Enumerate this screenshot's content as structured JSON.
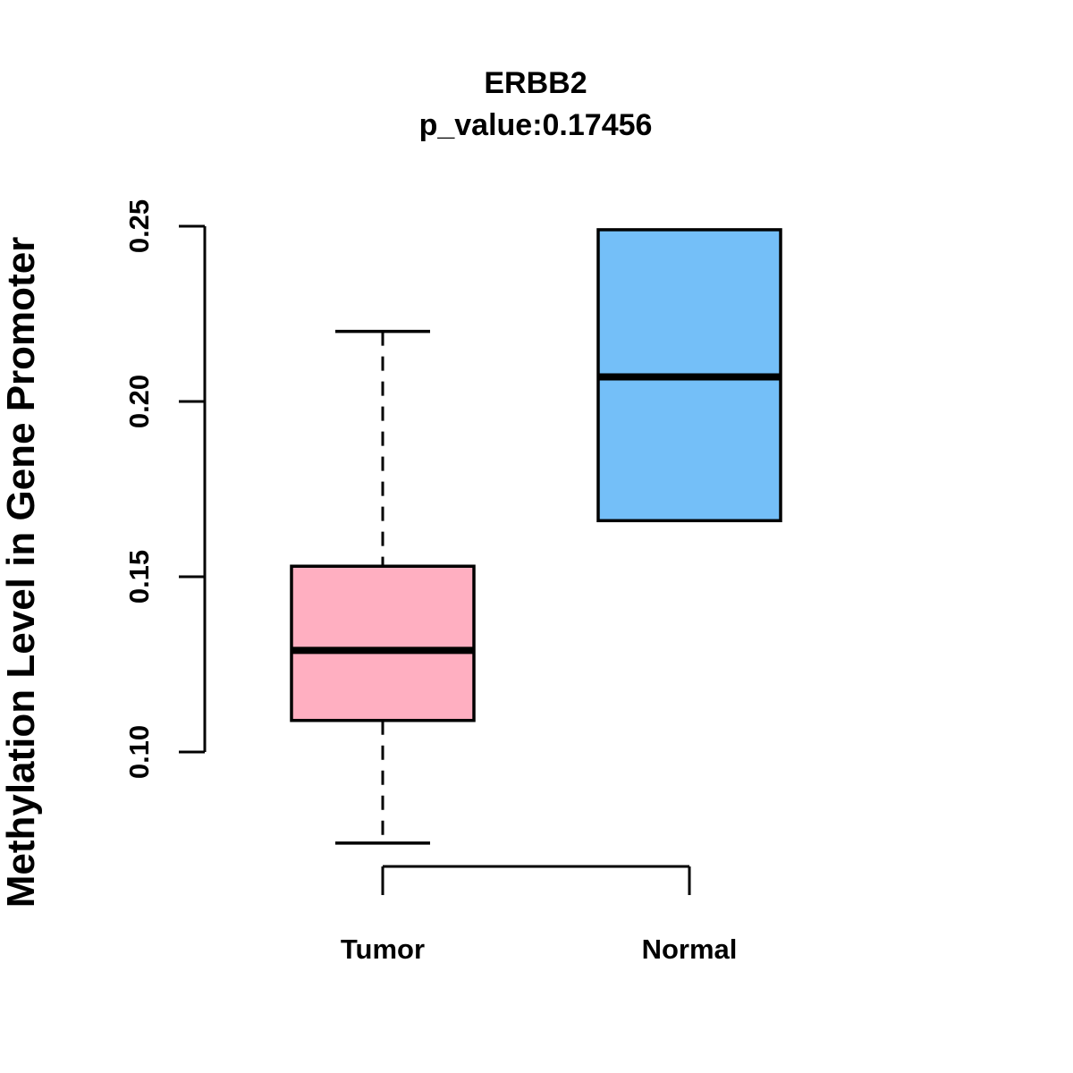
{
  "chart_data": {
    "type": "box",
    "title": "ERBB2",
    "subtitle": "p_value:0.17456",
    "p_value": "0.17456",
    "gene": "ERBB2",
    "xlabel": "",
    "ylabel": "Methylation Level in Gene Promoter",
    "categories": [
      "Tumor",
      "Normal"
    ],
    "ylim": [
      0.074,
      0.25
    ],
    "axis_range": [
      0.1,
      0.25
    ],
    "grid": false,
    "legend": "none",
    "yticks": [
      {
        "value": 0.1,
        "label": "0.10"
      },
      {
        "value": 0.15,
        "label": "0.15"
      },
      {
        "value": 0.2,
        "label": "0.20"
      },
      {
        "value": 0.25,
        "label": "0.25"
      }
    ],
    "series": [
      {
        "name": "tumor-box",
        "label": "Tumor",
        "color": "#FFAFC1",
        "whisker_low": 0.074,
        "q1": 0.109,
        "median": 0.129,
        "q3": 0.153,
        "whisker_high": 0.22,
        "has_whiskers": true
      },
      {
        "name": "normal-box",
        "label": "Normal",
        "color": "#74BFF8",
        "whisker_low": null,
        "q1": 0.166,
        "median": 0.207,
        "q3": 0.249,
        "whisker_high": null,
        "has_whiskers": false
      }
    ],
    "colors": {
      "tumor_fill": "#FFAFC1",
      "normal_fill": "#74BFF8",
      "stroke": "#000000",
      "background": "#FFFFFF"
    }
  }
}
